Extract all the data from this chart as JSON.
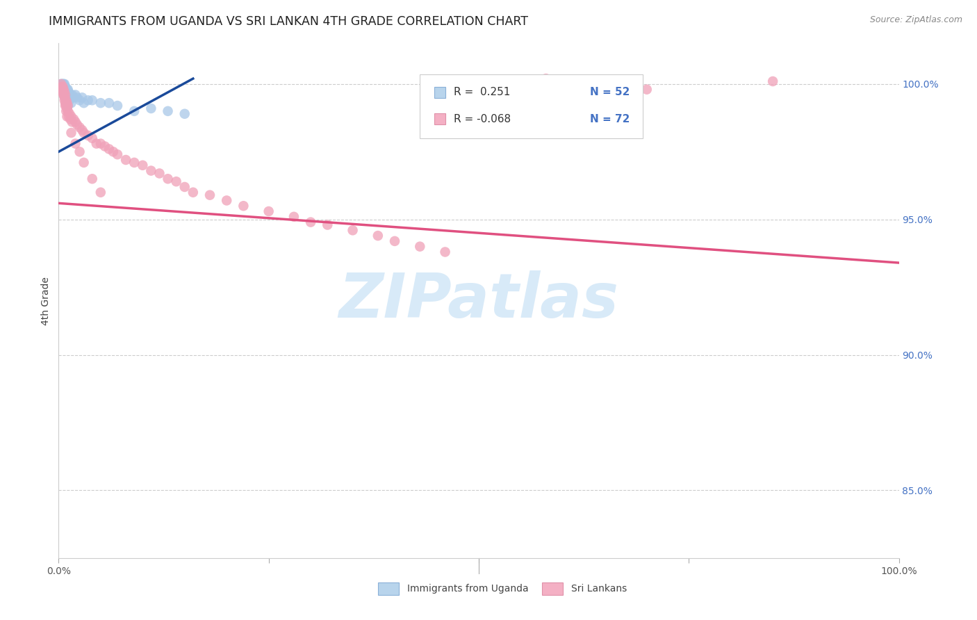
{
  "title": "IMMIGRANTS FROM UGANDA VS SRI LANKAN 4TH GRADE CORRELATION CHART",
  "source": "Source: ZipAtlas.com",
  "ylabel": "4th Grade",
  "ytick_labels": [
    "85.0%",
    "90.0%",
    "95.0%",
    "100.0%"
  ],
  "ytick_values": [
    0.85,
    0.9,
    0.95,
    1.0
  ],
  "xlim": [
    0.0,
    1.0
  ],
  "ylim": [
    0.825,
    1.015
  ],
  "r1_text": "R =  0.251",
  "n1_text": "N = 52",
  "r2_text": "R = -0.068",
  "n2_text": "N = 72",
  "blue_scatter": "#a8c8e8",
  "blue_line": "#1a4a9a",
  "pink_scatter": "#f0a0b8",
  "pink_line": "#e05080",
  "grid_color": "#cccccc",
  "watermark_color": "#d8eaf8",
  "legend_square_blue": "#b8d4ec",
  "legend_square_pink": "#f4b0c4",
  "r_text_color": "#333333",
  "n_text_color": "#4472c4",
  "ytick_color": "#4472c4",
  "xtick_color": "#555555",
  "uganda_x": [
    0.003,
    0.004,
    0.004,
    0.005,
    0.005,
    0.005,
    0.006,
    0.006,
    0.006,
    0.007,
    0.007,
    0.007,
    0.008,
    0.008,
    0.008,
    0.009,
    0.009,
    0.01,
    0.01,
    0.011,
    0.011,
    0.012,
    0.012,
    0.013,
    0.014,
    0.015,
    0.016,
    0.018,
    0.02,
    0.022,
    0.025,
    0.028,
    0.03,
    0.035,
    0.04,
    0.05,
    0.06,
    0.07,
    0.09,
    0.11,
    0.13,
    0.15,
    0.004,
    0.005,
    0.006,
    0.007,
    0.008,
    0.009,
    0.01,
    0.011,
    0.013,
    0.015
  ],
  "uganda_y": [
    1.0,
    1.0,
    0.999,
    1.0,
    0.999,
    0.998,
    1.0,
    0.999,
    0.998,
    1.0,
    0.999,
    0.997,
    0.999,
    0.998,
    0.997,
    0.998,
    0.996,
    0.998,
    0.997,
    0.998,
    0.996,
    0.997,
    0.995,
    0.996,
    0.996,
    0.995,
    0.996,
    0.995,
    0.996,
    0.995,
    0.994,
    0.995,
    0.993,
    0.994,
    0.994,
    0.993,
    0.993,
    0.992,
    0.99,
    0.991,
    0.99,
    0.989,
    0.999,
    0.998,
    0.997,
    0.996,
    0.995,
    0.994,
    0.993,
    0.992,
    0.994,
    0.993
  ],
  "srilanka_x": [
    0.003,
    0.004,
    0.004,
    0.005,
    0.005,
    0.006,
    0.006,
    0.007,
    0.007,
    0.008,
    0.008,
    0.009,
    0.009,
    0.01,
    0.01,
    0.011,
    0.011,
    0.012,
    0.013,
    0.014,
    0.015,
    0.016,
    0.018,
    0.02,
    0.022,
    0.025,
    0.028,
    0.03,
    0.035,
    0.04,
    0.045,
    0.05,
    0.055,
    0.06,
    0.065,
    0.07,
    0.08,
    0.09,
    0.1,
    0.11,
    0.12,
    0.13,
    0.14,
    0.15,
    0.16,
    0.18,
    0.2,
    0.22,
    0.25,
    0.28,
    0.3,
    0.32,
    0.35,
    0.38,
    0.4,
    0.43,
    0.46,
    0.005,
    0.006,
    0.007,
    0.008,
    0.009,
    0.01,
    0.015,
    0.02,
    0.025,
    0.03,
    0.04,
    0.05,
    0.58,
    0.85,
    0.7
  ],
  "srilanka_y": [
    1.0,
    0.999,
    0.998,
    0.999,
    0.997,
    0.998,
    0.996,
    0.997,
    0.995,
    0.996,
    0.993,
    0.994,
    0.992,
    0.993,
    0.991,
    0.992,
    0.99,
    0.988,
    0.989,
    0.987,
    0.988,
    0.986,
    0.987,
    0.986,
    0.985,
    0.984,
    0.983,
    0.982,
    0.981,
    0.98,
    0.978,
    0.978,
    0.977,
    0.976,
    0.975,
    0.974,
    0.972,
    0.971,
    0.97,
    0.968,
    0.967,
    0.965,
    0.964,
    0.962,
    0.96,
    0.959,
    0.957,
    0.955,
    0.953,
    0.951,
    0.949,
    0.948,
    0.946,
    0.944,
    0.942,
    0.94,
    0.938,
    0.998,
    0.996,
    0.994,
    0.992,
    0.99,
    0.988,
    0.982,
    0.978,
    0.975,
    0.971,
    0.965,
    0.96,
    1.002,
    1.001,
    0.998
  ],
  "pink_line_x": [
    0.0,
    1.0
  ],
  "pink_line_y": [
    0.956,
    0.934
  ],
  "blue_line_x": [
    0.0,
    0.16
  ],
  "blue_line_y": [
    0.975,
    1.002
  ]
}
